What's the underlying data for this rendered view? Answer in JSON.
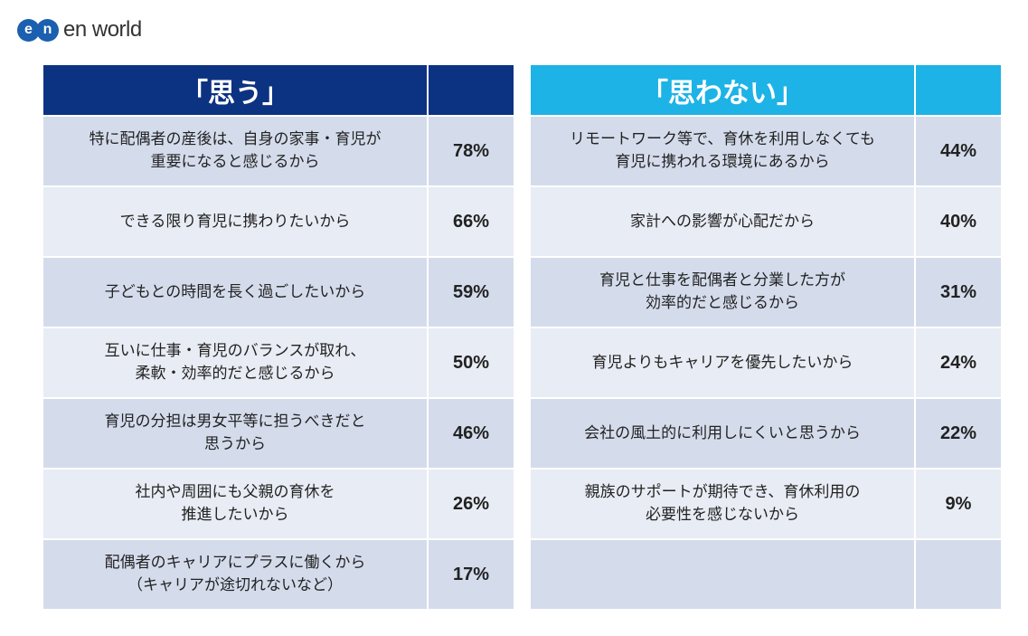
{
  "logo": {
    "mark": [
      "e",
      "n"
    ],
    "text": "en world"
  },
  "colors": {
    "positive_header": "#0c3282",
    "negative_header": "#1db3e6",
    "row_dark": "#d4dcec",
    "row_light": "#e8ecf4"
  },
  "left_table": {
    "header": "「思う」",
    "rows": [
      {
        "label": "特に配偶者の産後は、自身の家事・育児が\n重要になると感じるから",
        "pct": "78%"
      },
      {
        "label": "できる限り育児に携わりたいから",
        "pct": "66%"
      },
      {
        "label": "子どもとの時間を長く過ごしたいから",
        "pct": "59%"
      },
      {
        "label": "互いに仕事・育児のバランスが取れ、\n柔軟・効率的だと感じるから",
        "pct": "50%"
      },
      {
        "label": "育児の分担は男女平等に担うべきだと\n思うから",
        "pct": "46%"
      },
      {
        "label": "社内や周囲にも父親の育休を\n推進したいから",
        "pct": "26%"
      },
      {
        "label": "配偶者のキャリアにプラスに働くから\n（キャリアが途切れないなど）",
        "pct": "17%"
      }
    ]
  },
  "right_table": {
    "header": "「思わない」",
    "rows": [
      {
        "label": "リモートワーク等で、育休を利用しなくても\n育児に携われる環境にあるから",
        "pct": "44%"
      },
      {
        "label": "家計への影響が心配だから",
        "pct": "40%"
      },
      {
        "label": "育児と仕事を配偶者と分業した方が\n効率的だと感じるから",
        "pct": "31%"
      },
      {
        "label": "育児よりもキャリアを優先したいから",
        "pct": "24%"
      },
      {
        "label": "会社の風土的に利用しにくいと思うから",
        "pct": "22%"
      },
      {
        "label": "親族のサポートが期待でき、育休利用の\n必要性を感じないから",
        "pct": "9%"
      },
      {
        "label": "",
        "pct": ""
      }
    ]
  }
}
